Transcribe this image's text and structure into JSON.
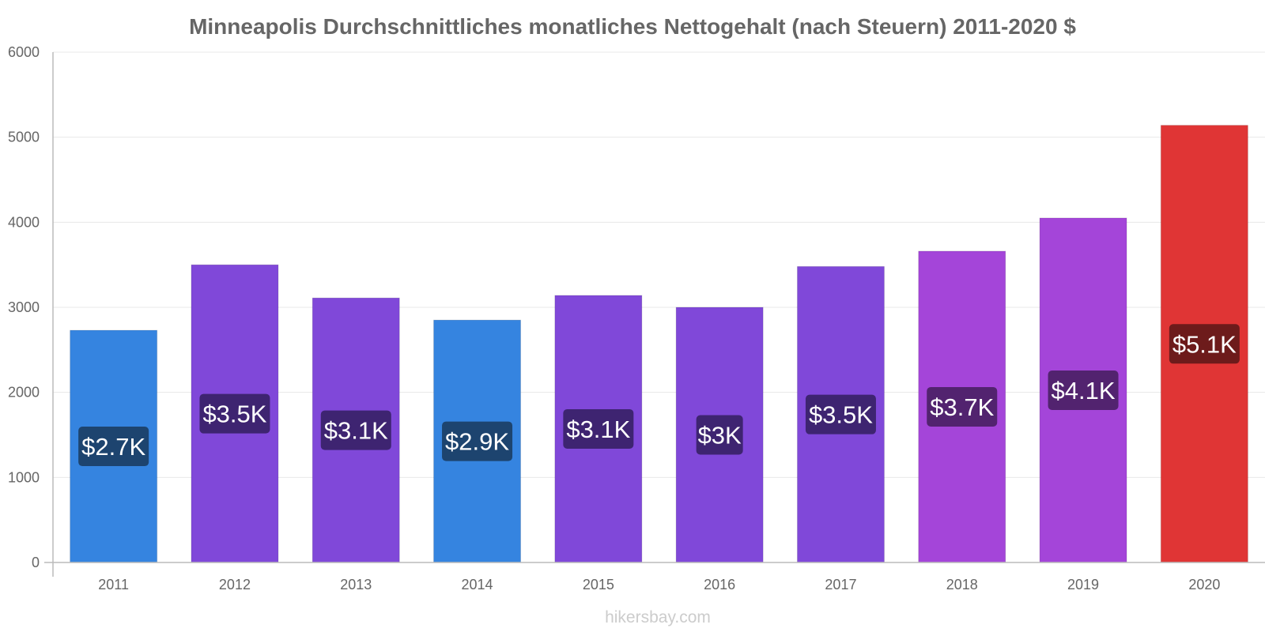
{
  "chart_data": {
    "type": "bar",
    "title": "Minneapolis Durchschnittliches monatliches Nettogehalt (nach Steuern) 2011-2020 $",
    "xlabel": "",
    "ylabel": "",
    "ylim": [
      0,
      6000
    ],
    "y_ticks": [
      0,
      1000,
      2000,
      3000,
      4000,
      5000,
      6000
    ],
    "grid": true,
    "categories": [
      "2011",
      "2012",
      "2013",
      "2014",
      "2015",
      "2016",
      "2017",
      "2018",
      "2019",
      "2020"
    ],
    "values": [
      2730,
      3500,
      3110,
      2850,
      3140,
      3000,
      3480,
      3660,
      4050,
      5140
    ],
    "data_labels": [
      "$2.7K",
      "$3.5K",
      "$3.1K",
      "$2.9K",
      "$3.1K",
      "$3K",
      "$3.5K",
      "$3.7K",
      "$4.1K",
      "$5.1K"
    ],
    "bar_colors": [
      "#3584e0",
      "#8048d9",
      "#8048d9",
      "#3584e0",
      "#8048d9",
      "#8048d9",
      "#8048d9",
      "#a445d9",
      "#a445d9",
      "#e03535"
    ],
    "label_bg_colors": [
      "#1d446f",
      "#3e2471",
      "#3e2471",
      "#1d446f",
      "#3e2471",
      "#3e2471",
      "#3e2471",
      "#52236f",
      "#52236f",
      "#6d1b1b"
    ]
  },
  "watermark": "hikersbay.com"
}
